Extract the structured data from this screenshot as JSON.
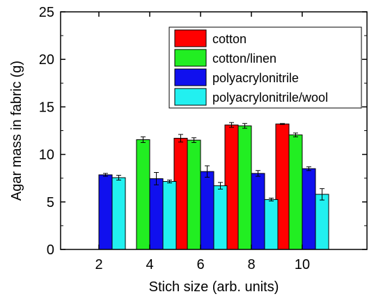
{
  "chart_data": {
    "type": "bar",
    "xlabel": "Stich size (arb. units)",
    "ylabel": "Agar mass in fabric (g)",
    "ylim": [
      0,
      25
    ],
    "yticks": [
      0,
      5,
      10,
      15,
      20,
      25
    ],
    "categories": [
      "2",
      "4",
      "6",
      "8",
      "10"
    ],
    "legend_position": "top-right",
    "series": [
      {
        "name": "cotton",
        "color": "#ff0000",
        "values": [
          null,
          null,
          11.7,
          13.1,
          13.2
        ],
        "errors": [
          null,
          null,
          0.4,
          0.25,
          0.05
        ]
      },
      {
        "name": "cotton/linen",
        "color": "#22ee22",
        "values": [
          null,
          11.55,
          11.5,
          13.0,
          12.05
        ],
        "errors": [
          null,
          0.3,
          0.25,
          0.25,
          0.2
        ]
      },
      {
        "name": "polyacrylonitrile",
        "color": "#1010ee",
        "values": [
          7.85,
          7.45,
          8.2,
          8.0,
          8.5
        ],
        "errors": [
          0.15,
          0.65,
          0.6,
          0.3,
          0.2
        ]
      },
      {
        "name": "polyacrylonitrile/wool",
        "color": "#22f0f0",
        "values": [
          7.55,
          7.15,
          6.7,
          5.25,
          5.8
        ],
        "errors": [
          0.25,
          0.15,
          0.35,
          0.15,
          0.6
        ]
      }
    ]
  }
}
